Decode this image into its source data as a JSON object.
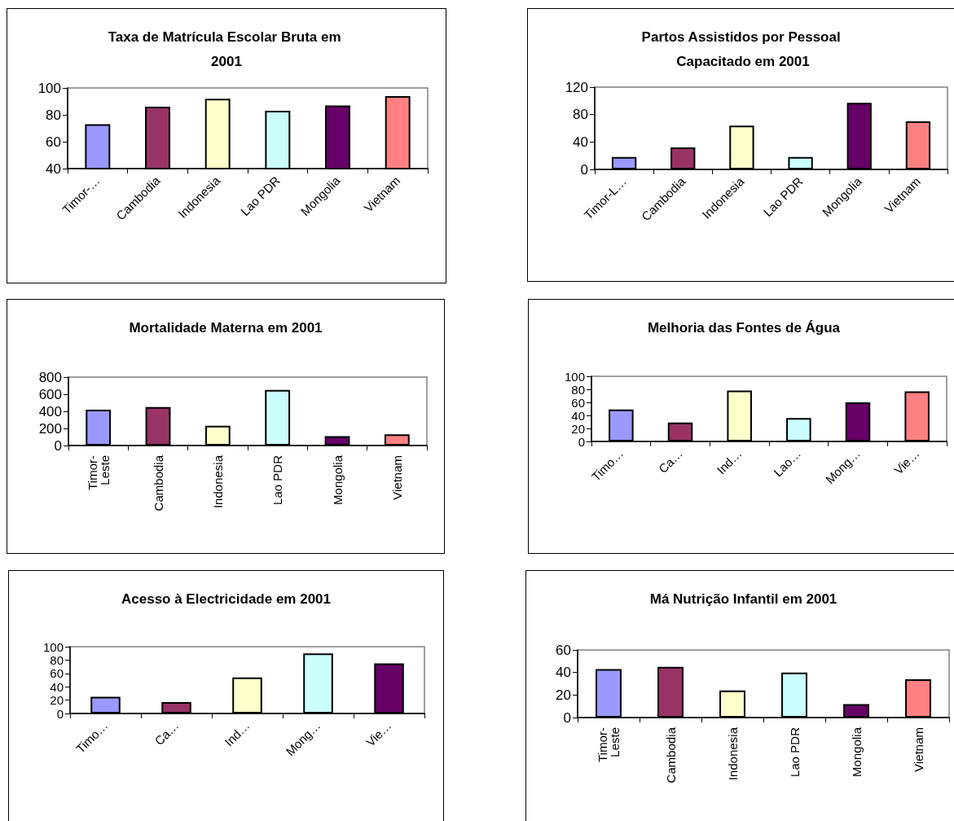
{
  "chart_data": [
    {
      "type": "bar",
      "title": "Taxa de Matrícula Escolar Bruta em 2001",
      "categories": [
        "Timor-…",
        "Cambodia",
        "Indonesia",
        "Lao PDR",
        "Mongolia",
        "Vietnam"
      ],
      "values": [
        73,
        86,
        92,
        83,
        87,
        94
      ],
      "colors": [
        "#9999ff",
        "#993366",
        "#ffffcc",
        "#ccffff",
        "#660066",
        "#ff8080"
      ],
      "ylim": [
        40,
        100
      ],
      "yticks": [
        40,
        60,
        80,
        100
      ]
    },
    {
      "type": "bar",
      "title": "Partos Assistidos por Pessoal Capacitado em 2001",
      "categories": [
        "Timor-L…",
        "Cambodia",
        "Indonesia",
        "Lao PDR",
        "Mongolia",
        "Vietnam"
      ],
      "values": [
        18,
        32,
        64,
        18,
        97,
        70
      ],
      "colors": [
        "#9999ff",
        "#993366",
        "#ffffcc",
        "#ccffff",
        "#660066",
        "#ff8080"
      ],
      "ylim": [
        0,
        120
      ],
      "yticks": [
        0,
        40,
        80,
        120
      ]
    },
    {
      "type": "bar",
      "title": "Mortalidade Materna em 2001",
      "categories": [
        "Timor-Leste",
        "Cambodia",
        "Indonesia",
        "Lao PDR",
        "Mongolia",
        "Vietnam"
      ],
      "values": [
        420,
        450,
        230,
        650,
        110,
        130
      ],
      "colors": [
        "#9999ff",
        "#993366",
        "#ffffcc",
        "#ccffff",
        "#660066",
        "#ff8080"
      ],
      "ylim": [
        0,
        800
      ],
      "yticks": [
        0,
        200,
        400,
        600,
        800
      ]
    },
    {
      "type": "bar",
      "title": "Melhoria das Fontes de Água",
      "categories": [
        "Timo…",
        "Ca…",
        "Ind…",
        "Lao…",
        "Mong…",
        "Vie…"
      ],
      "values": [
        49,
        29,
        78,
        36,
        60,
        77
      ],
      "colors": [
        "#9999ff",
        "#993366",
        "#ffffcc",
        "#ccffff",
        "#660066",
        "#ff8080"
      ],
      "ylim": [
        0,
        100
      ],
      "yticks": [
        0,
        20,
        40,
        60,
        80,
        100
      ]
    },
    {
      "type": "bar",
      "title": "Acesso à Electricidade em 2001",
      "categories": [
        "Timo…",
        "Ca…",
        "Ind…",
        "Mong…",
        "Vie…"
      ],
      "values": [
        25,
        17,
        54,
        90,
        75
      ],
      "colors": [
        "#9999ff",
        "#993366",
        "#ffffcc",
        "#ccffff",
        "#660066"
      ],
      "ylim": [
        0,
        100
      ],
      "yticks": [
        0,
        20,
        40,
        60,
        80,
        100
      ]
    },
    {
      "type": "bar",
      "title": "Má Nutrição Infantil em 2001",
      "categories": [
        "Timor-Leste",
        "Cambodia",
        "Indonesia",
        "Lao PDR",
        "Mongolia",
        "Vietnam"
      ],
      "values": [
        43,
        45,
        24,
        40,
        12,
        34
      ],
      "colors": [
        "#9999ff",
        "#993366",
        "#ffffcc",
        "#ccffff",
        "#660066",
        "#ff8080"
      ],
      "ylim": [
        0,
        60
      ],
      "yticks": [
        0,
        20,
        40,
        60
      ]
    }
  ]
}
